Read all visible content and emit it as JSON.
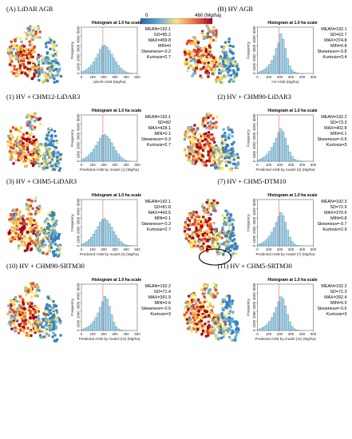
{
  "colorbar": {
    "min_label": "0",
    "max_label": "460 (Mg/ha)",
    "stops": [
      "#2166ac",
      "#67a9cf",
      "#fee08b",
      "#f46d43",
      "#a50026"
    ]
  },
  "map_palette": [
    "#3a7fc1",
    "#6bb0d6",
    "#f3e35a",
    "#f5b342",
    "#e0462b",
    "#a2001d"
  ],
  "ellipse_on_panel": 5,
  "chart_data": [
    {
      "type": "bar",
      "panel_title": "(A) LiDAR AGB",
      "title": "Histogram at 1.0 ha scale",
      "xlabel": "LiDAR AGB (Mg/ha)",
      "ylabel": "Frequency",
      "xlim": [
        0,
        500
      ],
      "ylim": [
        0,
        5000
      ],
      "xticks": [
        "0",
        "100",
        "200",
        "300",
        "400",
        "500"
      ],
      "yticks": [
        "0",
        "1000",
        "2000",
        "3000",
        "4000",
        "5000"
      ],
      "bin_width": 20,
      "mean_line": 192.1,
      "values": [
        180,
        300,
        450,
        650,
        900,
        1250,
        1650,
        2100,
        2600,
        2950,
        3050,
        2850,
        2500,
        2100,
        1650,
        1250,
        900,
        600,
        380,
        200,
        100,
        40,
        12
      ],
      "stats": [
        "MEAN=192.1",
        "SD=85.2",
        "MAX=459.8",
        "MIN=0",
        "Skewness=-0.2",
        "Kurtosis=2.7"
      ]
    },
    {
      "type": "bar",
      "panel_title": "(B) HV AGB",
      "title": "Histogram at 1.0 ha scale",
      "xlabel": "HV AGB (Mg/ha)",
      "ylabel": "Frequency",
      "xlim": [
        0,
        500
      ],
      "ylim": [
        0,
        5000
      ],
      "xticks": [
        "0",
        "100",
        "200",
        "300",
        "400",
        "500"
      ],
      "yticks": [
        "0",
        "1000",
        "2000",
        "3000",
        "4000",
        "5000"
      ],
      "bin_width": 20,
      "mean_line": 192.1,
      "values": [
        120,
        220,
        350,
        500,
        700,
        1000,
        1400,
        1900,
        2700,
        3300,
        4300,
        3700,
        2700,
        1600,
        800,
        350,
        150,
        60,
        20
      ],
      "stats": [
        "MEAN=192.1",
        "SD=63.7",
        "MAX=374.8",
        "MIN=0.8",
        "Skewness=-0.8",
        "Kurtosis=3.4"
      ]
    },
    {
      "type": "bar",
      "panel_title": "(1) HV + CHM12-LiDAR3",
      "title": "Histogram at 1.0 ha scale",
      "xlabel": "Predicted AGB by model (1) (Mg/ha)",
      "ylabel": "Frequency",
      "xlim": [
        0,
        500
      ],
      "ylim": [
        0,
        5000
      ],
      "xticks": [
        "0",
        "100",
        "200",
        "300",
        "400",
        "500"
      ],
      "yticks": [
        "0",
        "1000",
        "2000",
        "3000",
        "4000",
        "5000"
      ],
      "bin_width": 20,
      "mean_line": 192.1,
      "values": [
        200,
        320,
        480,
        700,
        950,
        1300,
        1700,
        2100,
        2500,
        2800,
        2900,
        2700,
        2400,
        2000,
        1550,
        1150,
        800,
        500,
        280,
        120,
        40,
        10
      ],
      "stats": [
        "MEAN=192.1",
        "SD=82",
        "MAX=428.1",
        "MIN=0.1",
        "Skewness=-0.3",
        "Kurtosis=2.7"
      ]
    },
    {
      "type": "bar",
      "panel_title": "(2) HV + CHM90-LiDAR3",
      "title": "Histogram at 1.0 ha scale",
      "xlabel": "Predicted AGB by model (2) (Mg/ha)",
      "ylabel": "Frequency",
      "xlim": [
        0,
        500
      ],
      "ylim": [
        0,
        5000
      ],
      "xticks": [
        "0",
        "100",
        "200",
        "300",
        "400",
        "500"
      ],
      "yticks": [
        "0",
        "1000",
        "2000",
        "3000",
        "4000",
        "5000"
      ],
      "bin_width": 20,
      "mean_line": 192.2,
      "values": [
        150,
        250,
        380,
        550,
        800,
        1100,
        1500,
        1950,
        2500,
        3100,
        3500,
        3200,
        2500,
        1700,
        1000,
        550,
        250,
        100,
        40,
        10
      ],
      "stats": [
        "MEAN=192.2",
        "SD=73.3",
        "MAX=402.8",
        "MIN=0.1",
        "Skewness=-0.6",
        "Kurtosis=3"
      ]
    },
    {
      "type": "bar",
      "panel_title": "(3) HV + CHM5-LiDAR3",
      "title": "Histogram at 1.0 ha scale",
      "xlabel": "Predicted AGB by model (3) (Mg/ha)",
      "ylabel": "Frequency",
      "xlim": [
        0,
        500
      ],
      "ylim": [
        0,
        5000
      ],
      "xticks": [
        "0",
        "100",
        "200",
        "300",
        "400",
        "500"
      ],
      "yticks": [
        "0",
        "1000",
        "2000",
        "3000",
        "4000",
        "5000"
      ],
      "bin_width": 20,
      "mean_line": 192.1,
      "values": [
        190,
        310,
        470,
        680,
        930,
        1280,
        1680,
        2100,
        2550,
        2850,
        2950,
        2750,
        2400,
        2000,
        1550,
        1150,
        800,
        500,
        290,
        140,
        60,
        20
      ],
      "stats": [
        "MEAN=192.1",
        "SD=81.8",
        "MAX=443.5",
        "MIN=0.1",
        "Skewness=-0.3",
        "Kurtosis=2.7"
      ]
    },
    {
      "type": "bar",
      "panel_title": "(7) HV + CHM5-DTM10",
      "title": "Histogram at 1.0 ha scale",
      "xlabel": "Predicted AGB by model (7) (Mg/ha)",
      "ylabel": "Frequency",
      "xlim": [
        0,
        500
      ],
      "ylim": [
        0,
        5000
      ],
      "xticks": [
        "0",
        "100",
        "200",
        "300",
        "400",
        "500"
      ],
      "yticks": [
        "0",
        "1000",
        "2000",
        "3000",
        "4000",
        "5000"
      ],
      "bin_width": 20,
      "mean_line": 192.3,
      "values": [
        140,
        240,
        370,
        540,
        780,
        1080,
        1500,
        1950,
        2550,
        3150,
        3600,
        3250,
        2550,
        1700,
        950,
        480,
        200,
        80,
        25
      ],
      "stats": [
        "MEAN=192.3",
        "SD=72.9",
        "MAX=370.6",
        "MIN=0.8",
        "Skewness=-0.7",
        "Kurtosis=2.9"
      ]
    },
    {
      "type": "bar",
      "panel_title": "(10) HV + CHM90-SRTM30",
      "title": "Histogram at 1.0 ha scale",
      "xlabel": "Predicted AGB by model (10) (Mg/ha)",
      "ylabel": "Frequency",
      "xlim": [
        0,
        500
      ],
      "ylim": [
        0,
        5000
      ],
      "xticks": [
        "0",
        "100",
        "200",
        "300",
        "400",
        "500"
      ],
      "yticks": [
        "0",
        "1000",
        "2000",
        "3000",
        "4000",
        "5000"
      ],
      "bin_width": 20,
      "mean_line": 192.2,
      "values": [
        110,
        200,
        320,
        480,
        700,
        1000,
        1400,
        1900,
        2500,
        3100,
        3700,
        3400,
        2600,
        1700,
        900,
        420,
        170,
        60,
        15
      ],
      "stats": [
        "MEAN=192.2",
        "SD=71.4",
        "MAX=391.9",
        "MIN=0.6",
        "Skewness=-0.5",
        "Kurtosis=3"
      ]
    },
    {
      "type": "bar",
      "panel_title": "(11) HV + CHM5-SRTM30",
      "title": "Histogram at 1.0 ha scale",
      "xlabel": "Predicted AGB by model (11) (Mg/ha)",
      "ylabel": "Frequency",
      "xlim": [
        0,
        500
      ],
      "ylim": [
        0,
        5000
      ],
      "xticks": [
        "0",
        "100",
        "200",
        "300",
        "400",
        "500"
      ],
      "yticks": [
        "0",
        "1000",
        "2000",
        "3000",
        "4000",
        "5000"
      ],
      "bin_width": 20,
      "mean_line": 192.2,
      "values": [
        110,
        200,
        320,
        480,
        700,
        1000,
        1400,
        1900,
        2500,
        3100,
        3650,
        3400,
        2650,
        1750,
        950,
        450,
        180,
        65,
        20
      ],
      "stats": [
        "MEAN=192.2",
        "SD=71.3",
        "MAX=392.4",
        "MIN=0.9",
        "Skewness=-0.6",
        "Kurtosis=3"
      ]
    }
  ]
}
